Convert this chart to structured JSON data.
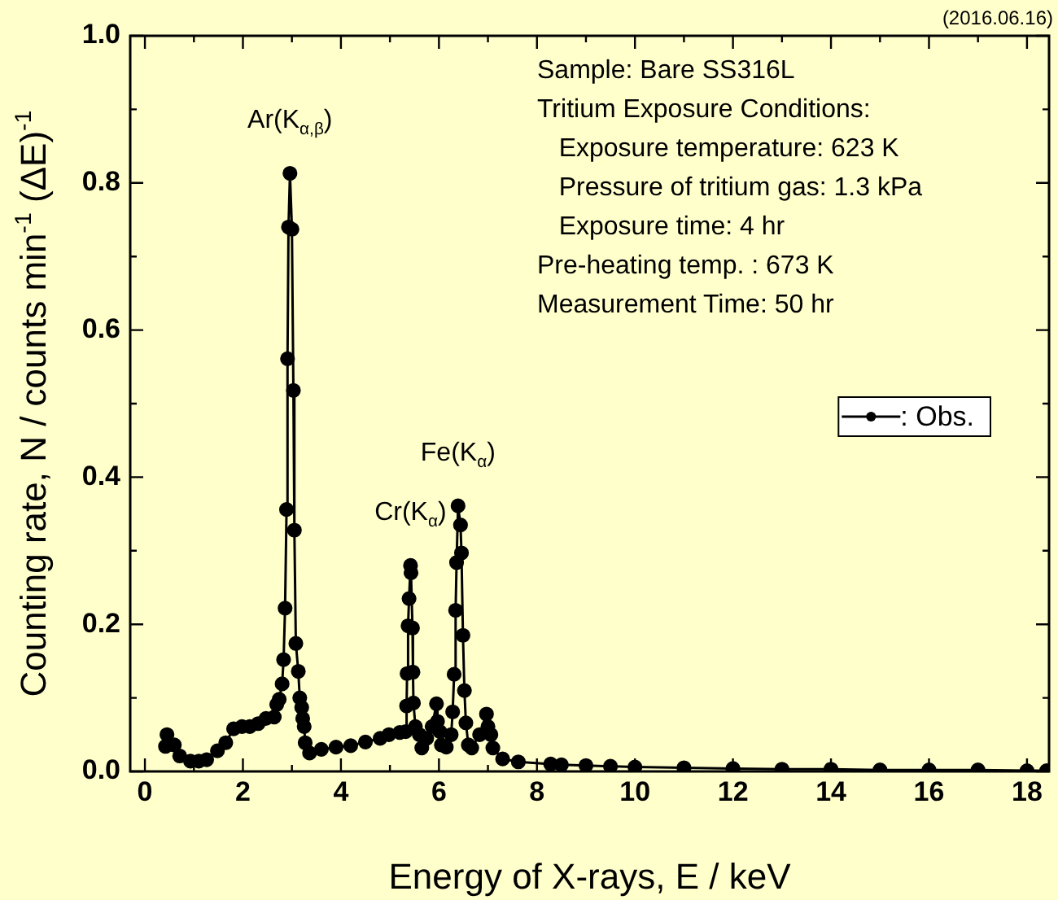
{
  "chart_data": {
    "type": "line",
    "xlabel": "Energy of X-rays, E / keV",
    "ylabel": "Counting rate, N / counts min$^{-1}$ (ΔE)$^{-1}$",
    "xlim": [
      -0.3,
      18.45
    ],
    "ylim": [
      0,
      1.0
    ],
    "xticks": [
      0,
      {
        "value": 1,
        "label": null
      },
      2,
      {
        "value": 3,
        "label": null
      },
      4,
      {
        "value": 5,
        "label": null
      },
      6,
      {
        "value": 7,
        "label": null
      },
      8,
      {
        "value": 9,
        "label": null
      },
      10,
      {
        "value": 11,
        "label": null
      },
      12,
      {
        "value": 13,
        "label": null
      },
      14,
      {
        "value": 15,
        "label": null
      },
      16,
      {
        "value": 17,
        "label": null
      },
      18
    ],
    "yticks": [
      {
        "value": 0,
        "label": "0.0"
      },
      {
        "value": 0.1,
        "label": null
      },
      {
        "value": 0.2,
        "label": "0.2"
      },
      {
        "value": 0.3,
        "label": null
      },
      {
        "value": 0.4,
        "label": "0.4"
      },
      {
        "value": 0.5,
        "label": null
      },
      {
        "value": 0.6,
        "label": "0.6"
      },
      {
        "value": 0.7,
        "label": null
      },
      {
        "value": 0.8,
        "label": "0.8"
      },
      {
        "value": 0.9,
        "label": null
      },
      {
        "value": 1.0,
        "label": "1.0"
      }
    ],
    "grid": false,
    "legend": "right",
    "marker": "circle",
    "line_style": "solid",
    "x": [
      0.42,
      0.45,
      0.6,
      0.71,
      0.93,
      1.1,
      1.26,
      1.48,
      1.65,
      1.81,
      1.98,
      2.14,
      2.31,
      2.47,
      2.64,
      2.69,
      2.74,
      2.8,
      2.83,
      2.86,
      2.89,
      2.91,
      2.93,
      2.96,
      3.0,
      3.03,
      3.05,
      3.08,
      3.13,
      3.16,
      3.2,
      3.22,
      3.25,
      3.27,
      3.36,
      3.6,
      3.9,
      4.2,
      4.5,
      4.8,
      4.98,
      5.2,
      5.32,
      5.34,
      5.35,
      5.37,
      5.39,
      5.42,
      5.43,
      5.46,
      5.47,
      5.48,
      5.52,
      5.6,
      5.65,
      5.75,
      5.86,
      5.95,
      5.97,
      6.02,
      6.05,
      6.15,
      6.25,
      6.28,
      6.31,
      6.34,
      6.36,
      6.39,
      6.44,
      6.46,
      6.49,
      6.52,
      6.55,
      6.6,
      6.67,
      6.83,
      6.97,
      7.0,
      7.06,
      7.1,
      7.3,
      7.62,
      8.28,
      8.5,
      9,
      9.5,
      10,
      11,
      12,
      13,
      14,
      15,
      16,
      17,
      18,
      18.4
    ],
    "series": [
      {
        "name": ": Obs.",
        "color": "#000000",
        "values": [
          0.034,
          0.05,
          0.036,
          0.021,
          0.014,
          0.014,
          0.016,
          0.028,
          0.039,
          0.058,
          0.061,
          0.061,
          0.065,
          0.072,
          0.074,
          0.091,
          0.098,
          0.119,
          0.152,
          0.222,
          0.356,
          0.561,
          0.74,
          0.813,
          0.737,
          0.518,
          0.328,
          0.174,
          0.136,
          0.1,
          0.087,
          0.072,
          0.061,
          0.039,
          0.025,
          0.03,
          0.033,
          0.035,
          0.04,
          0.045,
          0.05,
          0.053,
          0.054,
          0.089,
          0.133,
          0.198,
          0.235,
          0.28,
          0.27,
          0.195,
          0.135,
          0.093,
          0.061,
          0.05,
          0.032,
          0.045,
          0.061,
          0.092,
          0.068,
          0.054,
          0.036,
          0.033,
          0.05,
          0.081,
          0.132,
          0.219,
          0.284,
          0.361,
          0.335,
          0.297,
          0.185,
          0.11,
          0.066,
          0.036,
          0.032,
          0.05,
          0.078,
          0.061,
          0.05,
          0.032,
          0.017,
          0.013,
          0.01,
          0.009,
          0.008,
          0.007,
          0.006,
          0.005,
          0.004,
          0.003,
          0.003,
          0.002,
          0.002,
          0.002,
          0.001,
          0.001
        ]
      }
    ],
    "annotations": [
      "(2016.06.16)",
      "Sample: Bare SS316L",
      "Tritium Exposure Conditions:",
      "   Exposure temperature: 623 K",
      "   Pressure of tritium gas: 1.3 kPa",
      "   Exposure time: 4 hr",
      "Pre-heating temp. : 673 K",
      "Measurement Time: 50 hr",
      {
        "text": "Ar(K$_{α,β}$)",
        "x": 2.96,
        "y": 0.813
      },
      {
        "text": "Cr(K$_{α}$)",
        "x": 5.42,
        "y": 0.28
      },
      {
        "text": "Fe(K$_{α}$)",
        "x": 6.39,
        "y": 0.361
      }
    ]
  }
}
